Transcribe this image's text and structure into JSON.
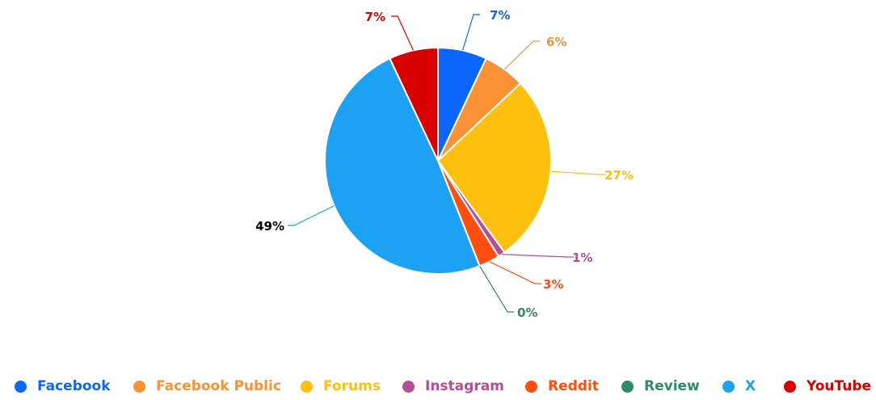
{
  "chart_data": {
    "type": "pie",
    "title": "",
    "categories": [
      "Facebook",
      "Facebook Public",
      "Forums",
      "Instagram",
      "Reddit",
      "Review",
      "X",
      "YouTube"
    ],
    "values": [
      7,
      6,
      27,
      1,
      3,
      0,
      49,
      7
    ],
    "labels": [
      "7%",
      "6%",
      "27%",
      "1%",
      "3%",
      "0%",
      "49%",
      "7%"
    ],
    "colors": [
      "#0a66ff",
      "#f99235",
      "#ffbf0f",
      "#b44e95",
      "#ff4e10",
      "#2f8b64",
      "#1da1f2",
      "#d90000"
    ],
    "label_colors": [
      "#0a66ff",
      "#f99235",
      "#ffbf0f",
      "#b44e95",
      "#ff4e10",
      "#2f8b64",
      "#000000",
      "#d90000"
    ],
    "legend_position": "bottom"
  }
}
